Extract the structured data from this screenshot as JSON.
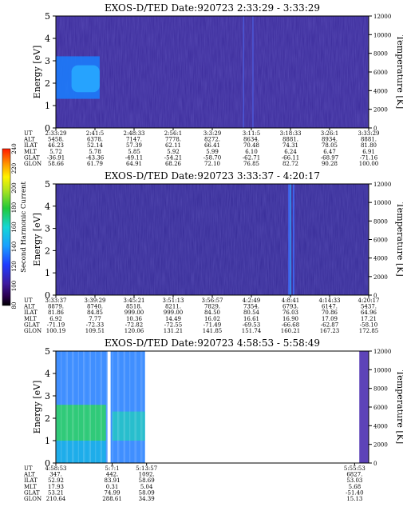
{
  "chart_data": [
    {
      "type": "heatmap",
      "title": "EXOS-D/TED   Date:920723  2:33:29 - 3:33:29",
      "ylabel": "Energy [eV]",
      "y2label": "Temperature [K]",
      "ylim": [
        0,
        5
      ],
      "y2lim": [
        0,
        12000
      ],
      "yticks": [
        "0",
        "1",
        "2",
        "3",
        "4",
        "5"
      ],
      "y2ticks": [
        "0",
        "2000",
        "4000",
        "6000",
        "8000",
        "10000",
        "12000"
      ],
      "background_color": "#3a2a9a",
      "features": [
        {
          "kind": "band",
          "x_from": 0.0,
          "x_to": 0.14,
          "y_from": 1.3,
          "y_to": 3.2,
          "intensity": "high",
          "color": "#1a7fff"
        },
        {
          "kind": "band",
          "x_from": 0.05,
          "x_to": 0.14,
          "y_from": 1.6,
          "y_to": 2.8,
          "intensity": "peak",
          "color": "#27a8ff"
        },
        {
          "kind": "vline",
          "x": 0.6,
          "y_from": 0,
          "y_to": 5,
          "color": "#4b59d8"
        },
        {
          "kind": "vline",
          "x": 0.63,
          "y_from": 0,
          "y_to": 5,
          "color": "#4b59d8"
        }
      ],
      "ephemeris": {
        "labels": [
          "UT",
          "ALT",
          "ILAT",
          "MLT",
          "GLAT",
          "GLON"
        ],
        "columns": [
          [
            "2:33:29",
            "5458.",
            "46.23",
            "5.72",
            "-36.91",
            "58.66"
          ],
          [
            "2:41:5",
            "6378.",
            "52.14",
            "5.78",
            "-43.36",
            "61.79"
          ],
          [
            "2:48:33",
            "7147.",
            "57.39",
            "5.85",
            "-49.11",
            "64.91"
          ],
          [
            "2:56:1",
            "7778.",
            "62.11",
            "5.92",
            "-54.21",
            "68.26"
          ],
          [
            "3:3:29",
            "8272.",
            "66.41",
            "5.99",
            "-58.70",
            "72.10"
          ],
          [
            "3:11:5",
            "8634.",
            "70.48",
            "6.10",
            "-62.71",
            "76.85"
          ],
          [
            "3:18:33",
            "8881.",
            "74.31",
            "6.24",
            "-66.11",
            "82.72"
          ],
          [
            "3:26:1",
            "8934.",
            "78.05",
            "6.47",
            "-68.97",
            "90.28"
          ],
          [
            "3:33:29",
            "8881.",
            "81.80",
            "6.91",
            "-71.16",
            "100.00"
          ]
        ]
      }
    },
    {
      "type": "heatmap",
      "title": "EXOS-D/TED   Date:920723  3:33:37 - 4:20:17",
      "ylabel": "Energy [eV]",
      "y2label": "Temperature [K]",
      "ylim": [
        0,
        5
      ],
      "y2lim": [
        0,
        12000
      ],
      "yticks": [
        "0",
        "1",
        "2",
        "3",
        "4",
        "5"
      ],
      "y2ticks": [
        "0",
        "2000",
        "4000",
        "6000",
        "8000",
        "10000",
        "12000"
      ],
      "background_color": "#352a96",
      "features": [
        {
          "kind": "vline",
          "x": 0.745,
          "y_from": 0,
          "y_to": 5,
          "color": "#3f6fff"
        },
        {
          "kind": "vline",
          "x": 0.75,
          "y_from": 0,
          "y_to": 5,
          "color": "#2fa0ff"
        },
        {
          "kind": "vline",
          "x": 0.76,
          "y_from": 0,
          "y_to": 5,
          "color": "#3f6fff"
        }
      ],
      "colorbar": {
        "label": "Second Harmonic Current",
        "ticks": [
          "80",
          "100",
          "120",
          "140",
          "160",
          "180",
          "200",
          "220",
          "240"
        ],
        "range": [
          80,
          240
        ]
      },
      "ephemeris": {
        "labels": [
          "UT",
          "ALT",
          "ILAT",
          "MLT",
          "GLAT",
          "GLON"
        ],
        "columns": [
          [
            "3:33:37",
            "8879.",
            "81.86",
            "6.92",
            "-71.19",
            "100.19"
          ],
          [
            "3:39:29",
            "8740.",
            "84.85",
            "7.77",
            "-72.33",
            "109.51"
          ],
          [
            "3:45:21",
            "8518.",
            "999.00",
            "10.36",
            "-72.82",
            "120.06"
          ],
          [
            "3:51:13",
            "8211.",
            "999.00",
            "14.49",
            "-72.55",
            "131.21"
          ],
          [
            "3:56:57",
            "7829.",
            "84.50",
            "16.02",
            "-71.49",
            "141.85"
          ],
          [
            "4:2:49",
            "7354.",
            "80.54",
            "16.61",
            "-69.53",
            "151.74"
          ],
          [
            "4:8:41",
            "6793.",
            "76.03",
            "16.90",
            "-66.68",
            "160.21"
          ],
          [
            "4:14:33",
            "6147.",
            "70.86",
            "17.09",
            "-62.87",
            "167.23"
          ],
          [
            "4:20:17",
            "5437.",
            "64.96",
            "17.21",
            "-58.10",
            "172.85"
          ]
        ]
      }
    },
    {
      "type": "heatmap",
      "title": "EXOS-D/TED   Date:920723  4:58:53 - 5:58:49",
      "ylabel": "Energy [eV]",
      "y2label": "Temperature [K]",
      "ylim": [
        0,
        5
      ],
      "y2lim": [
        0,
        12000
      ],
      "yticks": [
        "0",
        "1",
        "2",
        "3",
        "4",
        "5"
      ],
      "y2ticks": [
        "0",
        "2000",
        "4000",
        "6000",
        "8000",
        "10000",
        "12000"
      ],
      "background_color": "#ffffff",
      "data_span": [
        0.0,
        0.285
      ],
      "features": [
        {
          "kind": "band",
          "x_from": 0.0,
          "x_to": 0.285,
          "y_from": 0,
          "y_to": 5,
          "intensity": "high",
          "color": "#1e7bff"
        },
        {
          "kind": "band",
          "x_from": 0.0,
          "x_to": 0.16,
          "y_from": 1.0,
          "y_to": 2.6,
          "intensity": "peak",
          "color": "#2fd06a"
        },
        {
          "kind": "band",
          "x_from": 0.0,
          "x_to": 0.16,
          "y_from": 0.0,
          "y_to": 1.0,
          "intensity": "high",
          "color": "#19b3e6"
        },
        {
          "kind": "gap",
          "x_from": 0.165,
          "x_to": 0.175
        },
        {
          "kind": "band",
          "x_from": 0.18,
          "x_to": 0.285,
          "y_from": 1.0,
          "y_to": 2.3,
          "intensity": "mid",
          "color": "#22c9c0"
        },
        {
          "kind": "band",
          "x_from": 0.97,
          "x_to": 1.0,
          "y_from": 0,
          "y_to": 5,
          "intensity": "low",
          "color": "#4b2fb0"
        }
      ],
      "ephemeris": {
        "labels": [
          "UT",
          "ALT",
          "ILAT",
          "MLT",
          "GLAT",
          "GLON"
        ],
        "columns": [
          [
            "4:58:53",
            "347.",
            "52.92",
            "17.93",
            "53.21",
            "210.64"
          ],
          [
            "5:7:1",
            "442.",
            "83.91",
            "0.31",
            "74.99",
            "288.61"
          ],
          [
            "5:13:57",
            "1092.",
            "58.69",
            "5.04",
            "58.09",
            "34.39"
          ],
          [
            "5:55:53",
            "6827.",
            "53.03",
            "5.68",
            "-51.40",
            "15.13"
          ]
        ],
        "column_positions": [
          0.0,
          0.18,
          0.29,
          0.955
        ]
      }
    }
  ]
}
